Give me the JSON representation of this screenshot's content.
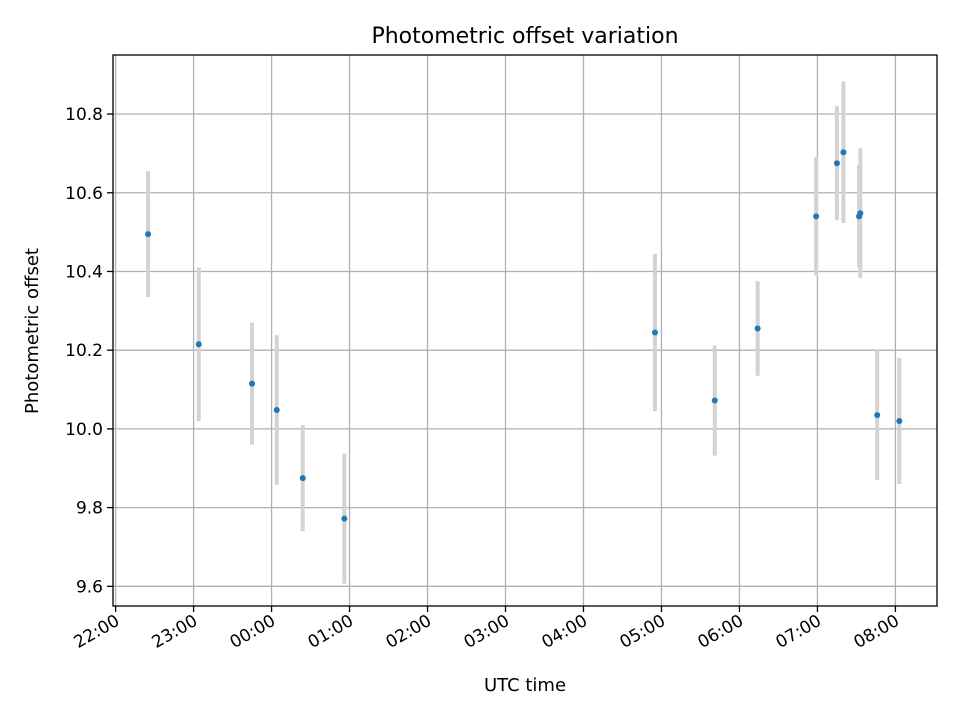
{
  "chart_data": {
    "type": "scatter",
    "title": "Photometric offset variation",
    "xlabel": "UTC time",
    "ylabel": "Photometric offset",
    "x_start": "22:00",
    "xlim": [
      "21:58",
      "08:32"
    ],
    "ylim": [
      9.55,
      10.95
    ],
    "x_ticks": [
      "22:00",
      "23:00",
      "00:00",
      "01:00",
      "02:00",
      "03:00",
      "04:00",
      "05:00",
      "06:00",
      "07:00",
      "08:00"
    ],
    "y_ticks": [
      9.6,
      9.8,
      10.0,
      10.2,
      10.4,
      10.6,
      10.8
    ],
    "y_tick_labels": [
      "9.6",
      "9.8",
      "10.0",
      "10.2",
      "10.4",
      "10.6",
      "10.8"
    ],
    "grid": true,
    "marker_color": "#1f77b4",
    "errorbar_color": "#d3d3d3",
    "points": [
      {
        "t": "22:25",
        "y": 10.495,
        "err": 0.16
      },
      {
        "t": "23:04",
        "y": 10.215,
        "err": 0.195
      },
      {
        "t": "23:45",
        "y": 10.115,
        "err": 0.155
      },
      {
        "t": "00:04",
        "y": 10.048,
        "err": 0.19
      },
      {
        "t": "00:24",
        "y": 9.875,
        "err": 0.135
      },
      {
        "t": "00:56",
        "y": 9.772,
        "err": 0.165
      },
      {
        "t": "04:55",
        "y": 10.245,
        "err": 0.2
      },
      {
        "t": "05:41",
        "y": 10.072,
        "err": 0.14
      },
      {
        "t": "06:14",
        "y": 10.255,
        "err": 0.12
      },
      {
        "t": "06:59",
        "y": 10.54,
        "err": 0.15
      },
      {
        "t": "07:15",
        "y": 10.675,
        "err": 0.145
      },
      {
        "t": "07:20",
        "y": 10.703,
        "err": 0.18
      },
      {
        "t": "07:32",
        "y": 10.54,
        "err": 0.13
      },
      {
        "t": "07:33",
        "y": 10.548,
        "err": 0.165
      },
      {
        "t": "07:46",
        "y": 10.035,
        "err": 0.165
      },
      {
        "t": "08:03",
        "y": 10.02,
        "err": 0.16
      }
    ]
  }
}
